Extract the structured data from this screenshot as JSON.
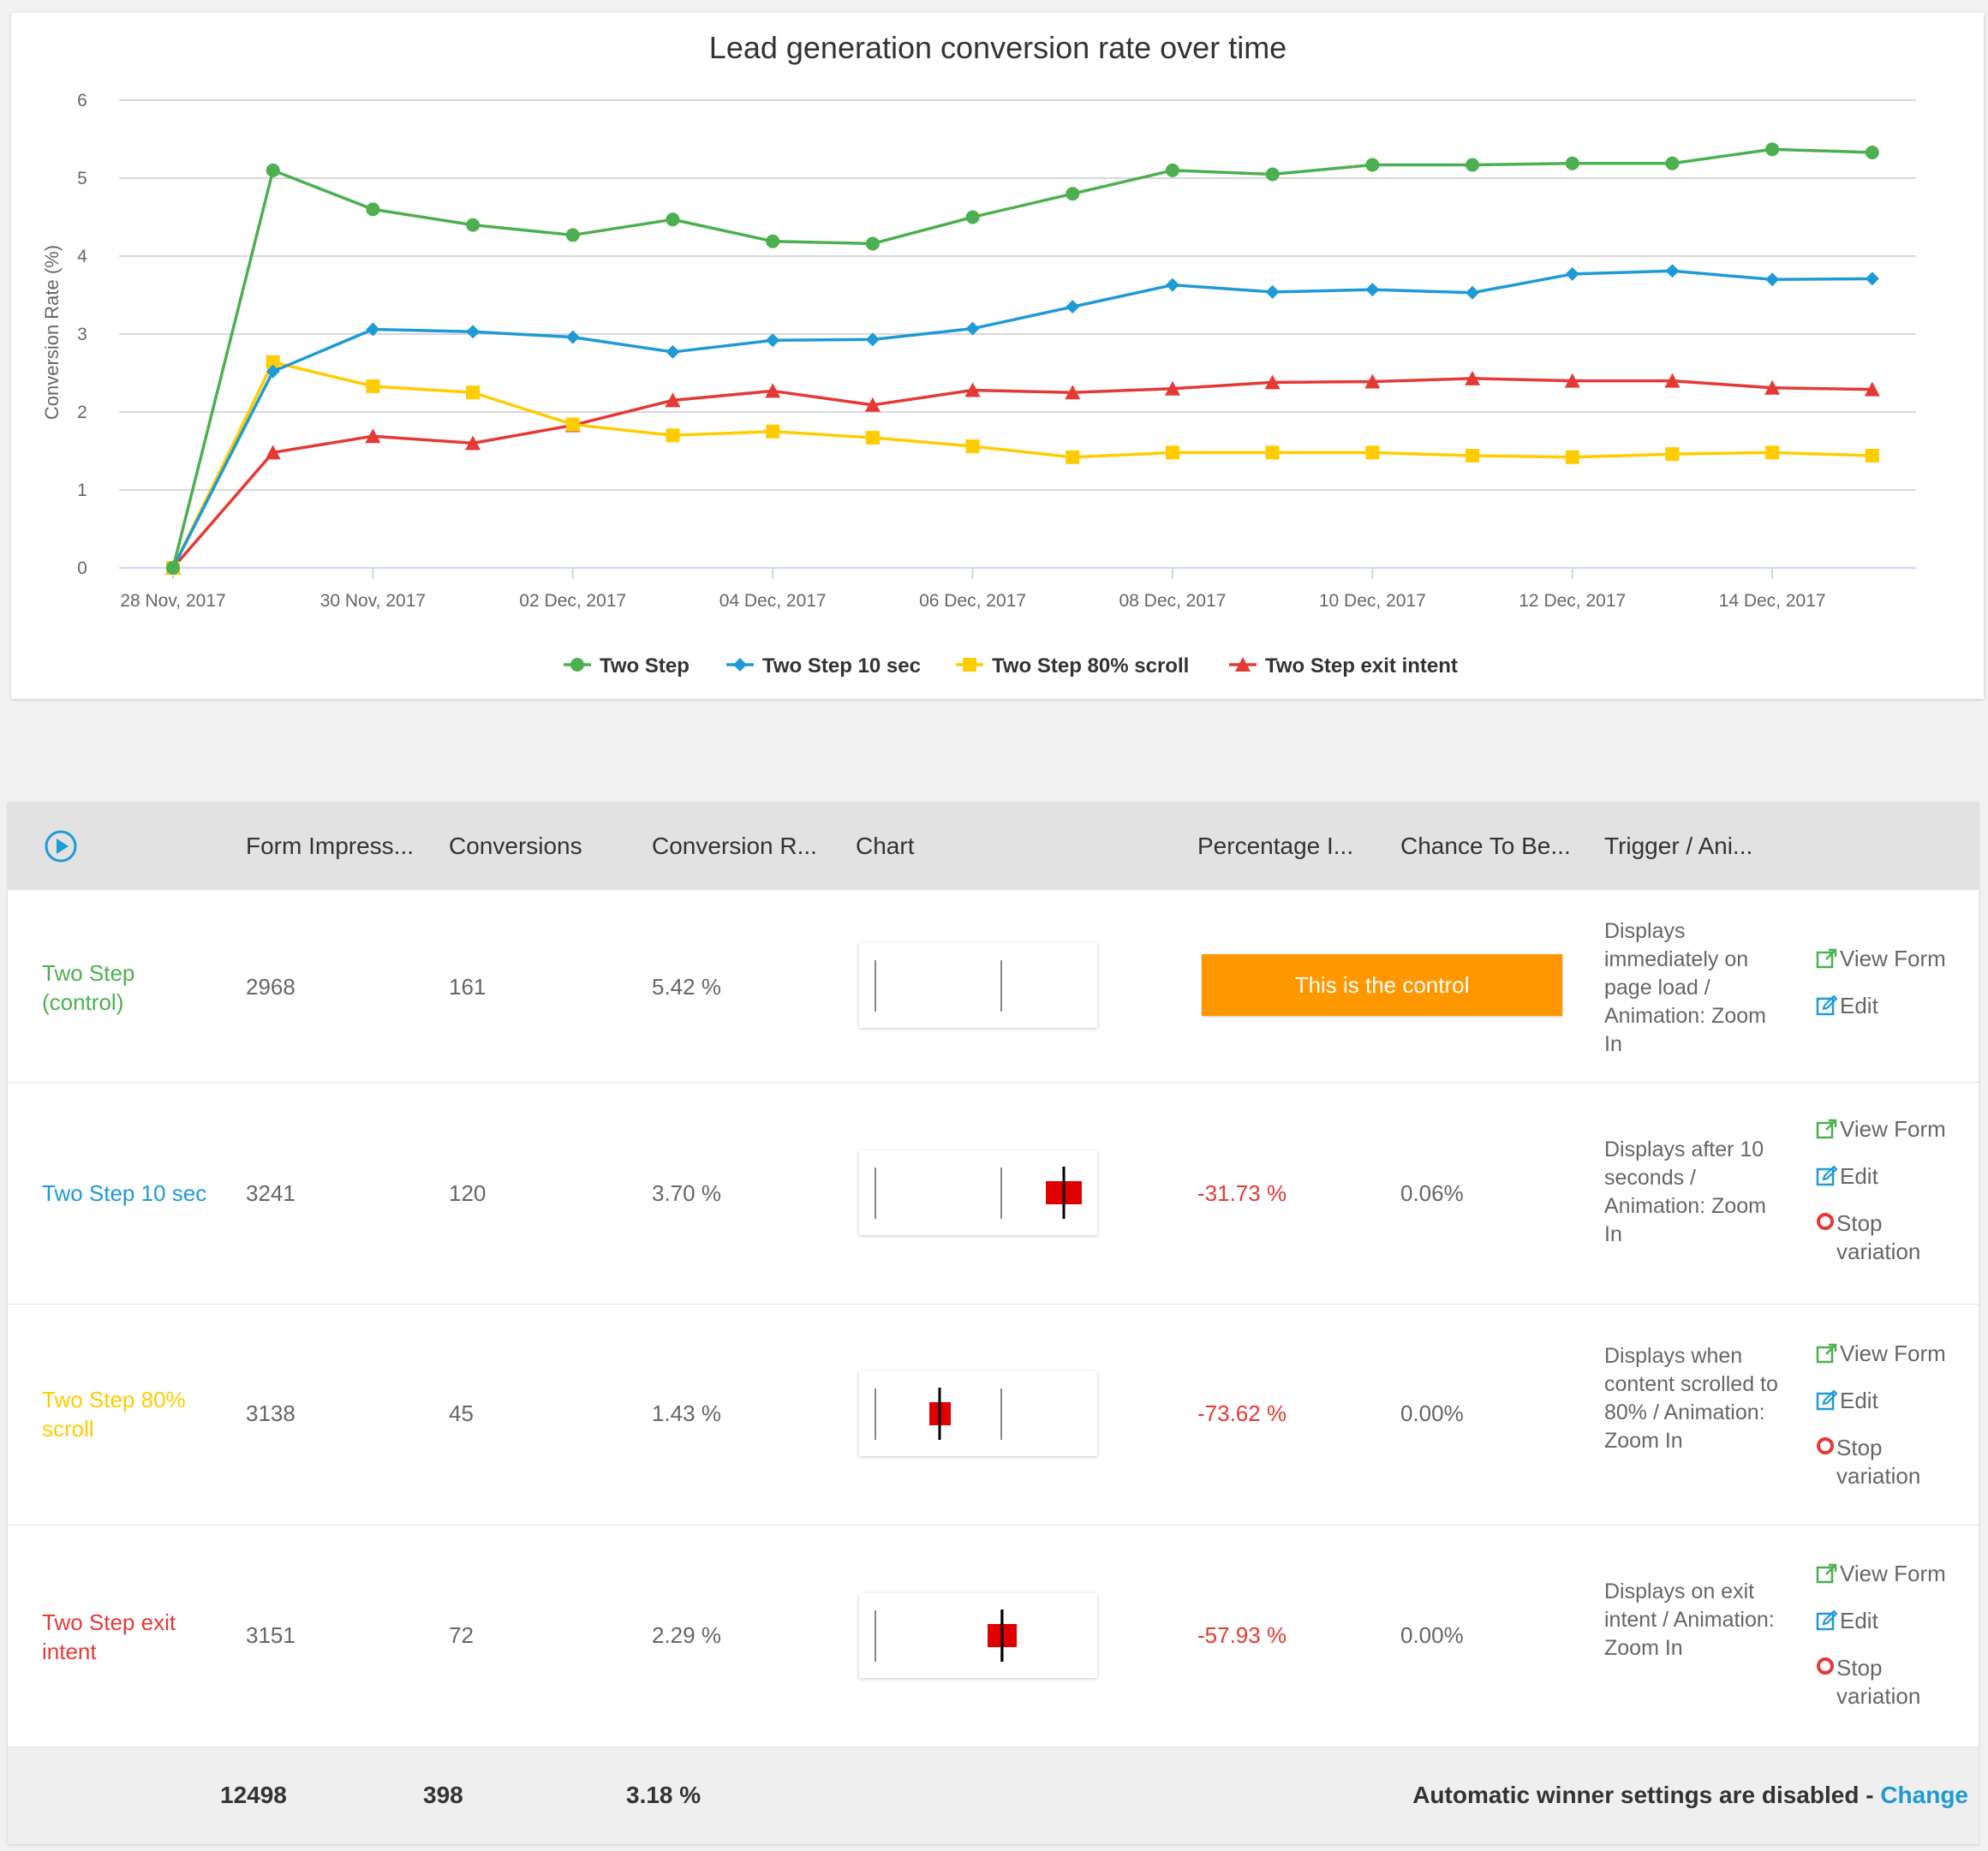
{
  "chart_data": {
    "type": "line",
    "title": "Lead generation conversion rate over time",
    "ylabel": "Conversion Rate (%)",
    "xlabel": "",
    "ylim": [
      0,
      6
    ],
    "yticks": [
      0,
      1,
      2,
      3,
      4,
      5,
      6
    ],
    "x_tick_labels": [
      "28 Nov, 2017",
      "30 Nov, 2017",
      "02 Dec, 2017",
      "04 Dec, 2017",
      "06 Dec, 2017",
      "08 Dec, 2017",
      "10 Dec, 2017",
      "12 Dec, 2017",
      "14 Dec, 2017"
    ],
    "x": [
      "28 Nov, 2017",
      "29 Nov, 2017",
      "30 Nov, 2017",
      "01 Dec, 2017",
      "02 Dec, 2017",
      "03 Dec, 2017",
      "04 Dec, 2017",
      "05 Dec, 2017",
      "06 Dec, 2017",
      "07 Dec, 2017",
      "08 Dec, 2017",
      "09 Dec, 2017",
      "10 Dec, 2017",
      "11 Dec, 2017",
      "12 Dec, 2017",
      "13 Dec, 2017",
      "14 Dec, 2017",
      "15 Dec, 2017"
    ],
    "grid": true,
    "legend": "bottom",
    "series": [
      {
        "name": "Two Step",
        "color": "#4caf50",
        "marker": "circle",
        "values": [
          0,
          5.1,
          4.6,
          4.4,
          4.27,
          4.47,
          4.19,
          4.16,
          4.5,
          4.8,
          5.1,
          5.05,
          5.17,
          5.17,
          5.19,
          5.19,
          5.37,
          5.33
        ]
      },
      {
        "name": "Two Step 10 sec",
        "color": "#1e9ad6",
        "marker": "diamond",
        "values": [
          0,
          2.52,
          3.06,
          3.03,
          2.96,
          2.77,
          2.92,
          2.93,
          3.07,
          3.35,
          3.63,
          3.54,
          3.57,
          3.53,
          3.77,
          3.81,
          3.7,
          3.71
        ]
      },
      {
        "name": "Two Step 80% scroll",
        "color": "#ffcc00",
        "marker": "square",
        "values": [
          0,
          2.64,
          2.33,
          2.25,
          1.84,
          1.7,
          1.75,
          1.67,
          1.56,
          1.42,
          1.48,
          1.48,
          1.48,
          1.44,
          1.42,
          1.46,
          1.48,
          1.44
        ]
      },
      {
        "name": "Two Step exit intent",
        "color": "#e53935",
        "marker": "triangle",
        "values": [
          0,
          1.48,
          1.69,
          1.6,
          1.83,
          2.15,
          2.27,
          2.09,
          2.28,
          2.25,
          2.3,
          2.38,
          2.39,
          2.43,
          2.4,
          2.4,
          2.31,
          2.29
        ]
      }
    ]
  },
  "table": {
    "headers": [
      "Form Impress...",
      "Conversions",
      "Conversion R...",
      "Chart",
      "Percentage I...",
      "Chance To Be...",
      "Trigger / Ani..."
    ],
    "rows": [
      {
        "name": "Two Step\n(control)",
        "color": "#4caf50",
        "impressions": "2968",
        "conversions": "161",
        "rate": "5.42 %",
        "control_label": "This is the control",
        "percentage": "",
        "chance": "",
        "trigger": "Displays immediately on page load / Animation: Zoom In",
        "marker": {
          "center": 5.42,
          "low": 5.42,
          "high": 5.42
        },
        "show_marker": false,
        "actions": [
          "View Form",
          "Edit"
        ]
      },
      {
        "name": "Two Step 10 sec",
        "color": "#1e9ad6",
        "impressions": "3241",
        "conversions": "120",
        "rate": "3.70 %",
        "percentage": "-31.73 %",
        "chance": "0.06%",
        "trigger": "Displays after 10 seconds / Animation: Zoom In",
        "show_marker": true,
        "actions": [
          "View Form",
          "Edit",
          "Stop variation"
        ]
      },
      {
        "name": "Two Step 80%\nscroll",
        "color": "#ffcc00",
        "impressions": "3138",
        "conversions": "45",
        "rate": "1.43 %",
        "percentage": "-73.62 %",
        "chance": "0.00%",
        "trigger": "Displays when content scrolled to 80% / Animation: Zoom In",
        "show_marker": true,
        "actions": [
          "View Form",
          "Edit",
          "Stop variation"
        ]
      },
      {
        "name": "Two Step exit\nintent",
        "color": "#e53935",
        "impressions": "3151",
        "conversions": "72",
        "rate": "2.29 %",
        "percentage": "-57.93 %",
        "chance": "0.00%",
        "trigger": "Displays on exit intent / Animation: Zoom In",
        "show_marker": true,
        "actions": [
          "View Form",
          "Edit",
          "Stop variation"
        ]
      }
    ],
    "footer": {
      "impressions": "12498",
      "conversions": "398",
      "rate": "3.18 %",
      "winner_text": "Automatic winner settings are disabled - ",
      "change_link": "Change"
    }
  },
  "colors": {
    "accent": "#1e9ad6",
    "control": "#ff9800",
    "negative": "#e53935"
  }
}
